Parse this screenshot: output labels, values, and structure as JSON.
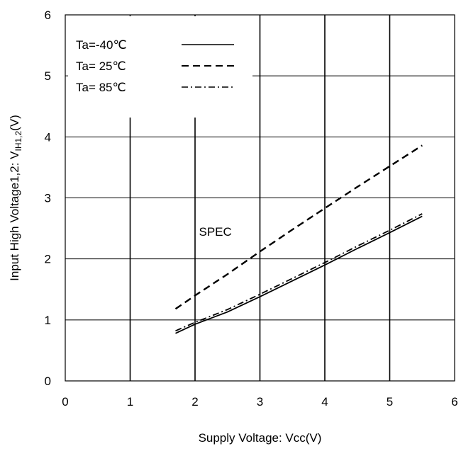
{
  "chart_data": {
    "type": "line",
    "xlabel": "Supply Voltage: Vcc(V)",
    "ylabel_main": "Input High Voltage1,2: V",
    "ylabel_sub": "IH1,2",
    "ylabel_unit": "(V)",
    "xlim": [
      0,
      6
    ],
    "ylim": [
      0,
      6
    ],
    "x_ticks": [
      "0",
      "1",
      "2",
      "3",
      "4",
      "5",
      "6"
    ],
    "y_ticks": [
      "0",
      "1",
      "2",
      "3",
      "4",
      "5",
      "6"
    ],
    "grid": true,
    "legend_position": "top-left",
    "series": [
      {
        "name": "Ta=-40℃",
        "dash": "solid",
        "x": [
          1.7,
          2.0,
          2.5,
          3.0,
          3.5,
          4.0,
          4.5,
          5.0,
          5.5
        ],
        "y": [
          0.78,
          0.93,
          1.13,
          1.38,
          1.64,
          1.9,
          2.17,
          2.43,
          2.7
        ]
      },
      {
        "name": "Ta= 25℃",
        "dash": "dash",
        "x": [
          1.7,
          2.0,
          2.5,
          3.0,
          3.5,
          4.0,
          4.5,
          5.0,
          5.5
        ],
        "y": [
          1.18,
          1.4,
          1.75,
          2.12,
          2.48,
          2.83,
          3.18,
          3.52,
          3.86
        ]
      },
      {
        "name": "Ta= 85℃",
        "dash": "dashdot",
        "x": [
          1.7,
          2.0,
          2.5,
          3.0,
          3.5,
          4.0,
          4.5,
          5.0,
          5.5
        ],
        "y": [
          0.82,
          0.96,
          1.17,
          1.42,
          1.68,
          1.94,
          2.21,
          2.47,
          2.74
        ]
      }
    ],
    "annotations": [
      {
        "text": "SPEC",
        "x": 3.0,
        "y": 2.45
      }
    ]
  }
}
